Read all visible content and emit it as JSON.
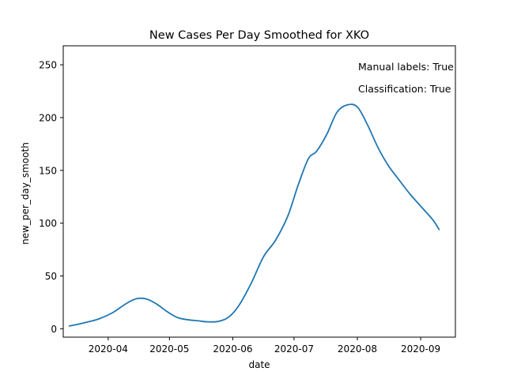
{
  "chart_data": {
    "type": "line",
    "title": "New Cases Per Day Smoothed for XKO",
    "xlabel": "date",
    "ylabel": "new_per_day_smooth",
    "ylim": [
      -8,
      268
    ],
    "xlim": [
      "2020-03-10",
      "2020-09-18"
    ],
    "y_ticks": [
      0,
      50,
      100,
      150,
      200,
      250
    ],
    "x_ticks": [
      "2020-04-01",
      "2020-05-01",
      "2020-06-01",
      "2020-07-01",
      "2020-08-01",
      "2020-09-01"
    ],
    "x_tick_labels": [
      "2020-04",
      "2020-05",
      "2020-06",
      "2020-07",
      "2020-08",
      "2020-09"
    ],
    "grid": false,
    "line_color": "#1f77b4",
    "annotations": [
      "Manual labels: True",
      "Classification: True"
    ],
    "series": [
      {
        "x": [
          "2020-03-13",
          "2020-03-20",
          "2020-03-27",
          "2020-04-03",
          "2020-04-10",
          "2020-04-15",
          "2020-04-20",
          "2020-04-25",
          "2020-04-30",
          "2020-05-05",
          "2020-05-10",
          "2020-05-15",
          "2020-05-20",
          "2020-05-25",
          "2020-05-30",
          "2020-06-04",
          "2020-06-10",
          "2020-06-16",
          "2020-06-22",
          "2020-06-28",
          "2020-07-03",
          "2020-07-08",
          "2020-07-12",
          "2020-07-17",
          "2020-07-22",
          "2020-07-27",
          "2020-08-01",
          "2020-08-06",
          "2020-08-11",
          "2020-08-16",
          "2020-08-21",
          "2020-08-27",
          "2020-09-02",
          "2020-09-07",
          "2020-09-10"
        ],
        "y": [
          2.5,
          5.5,
          9,
          15,
          24,
          28.5,
          28,
          23,
          16,
          10.5,
          8.5,
          7.5,
          6.5,
          7,
          11,
          22,
          43,
          68,
          84,
          107,
          136,
          161,
          168,
          184,
          205,
          212,
          210,
          193,
          172,
          155,
          142,
          127,
          114,
          103,
          94
        ]
      }
    ]
  }
}
